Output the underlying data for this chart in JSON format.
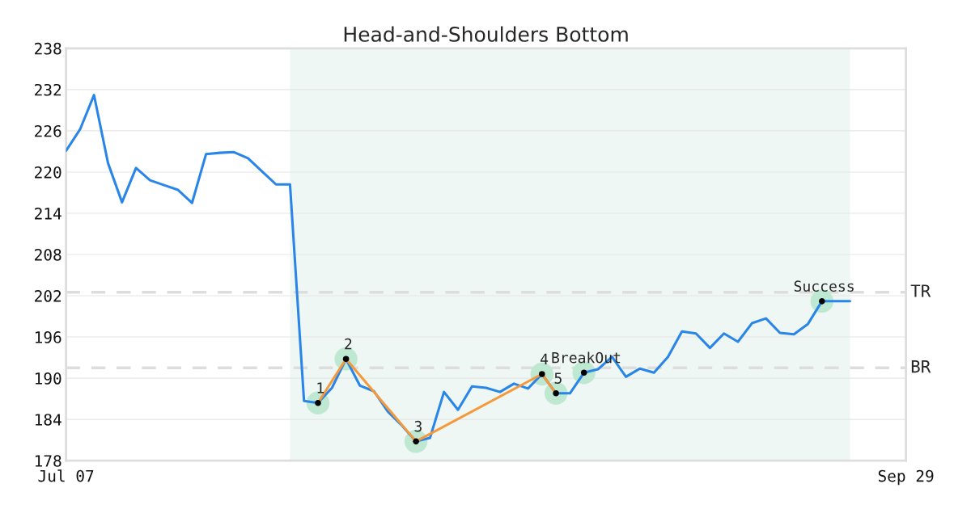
{
  "chart_data": {
    "type": "line",
    "title": "Head-and-Shoulders Bottom",
    "categories": [
      "Jul 07",
      null,
      null,
      null,
      null,
      null,
      null,
      null,
      null,
      null,
      null,
      null,
      null,
      null,
      null,
      null,
      null,
      null,
      null,
      null,
      null,
      null,
      null,
      null,
      null,
      null,
      null,
      null,
      null,
      null,
      null,
      null,
      null,
      null,
      null,
      null,
      null,
      null,
      null,
      null,
      null,
      null,
      null,
      null,
      null,
      null,
      null,
      null,
      null,
      null,
      null,
      null,
      null,
      null,
      null,
      null,
      null,
      null,
      null,
      null,
      "Sep 29"
    ],
    "series": [
      {
        "color": "#2a85e8",
        "values": [
          223.1,
          226.2,
          231.2,
          221.3,
          215.6,
          220.6,
          218.8,
          218.1,
          217.4,
          215.5,
          222.6,
          222.8,
          222.9,
          222.0,
          220.1,
          218.2,
          218.2,
          186.7,
          186.4,
          188.6,
          192.8,
          188.9,
          188.1,
          185.1,
          183.1,
          180.8,
          181.3,
          188.0,
          185.4,
          188.8,
          188.6,
          188.0,
          189.2,
          188.5,
          190.6,
          187.8,
          187.8,
          190.8,
          191.3,
          193.1,
          190.2,
          191.4,
          190.8,
          193.1,
          196.8,
          196.5,
          194.4,
          196.5,
          195.3,
          198.0,
          198.7,
          196.6,
          196.4,
          197.9,
          201.2,
          201.2,
          201.2,
          null,
          null,
          null,
          null
        ]
      },
      {
        "type": "line",
        "color": "#f59a3c",
        "values": [
          null,
          null,
          null,
          null,
          null,
          null,
          null,
          null,
          null,
          null,
          null,
          null,
          null,
          null,
          null,
          null,
          null,
          null,
          186.4,
          null,
          192.8,
          null,
          null,
          null,
          null,
          180.8,
          null,
          null,
          null,
          null,
          null,
          null,
          null,
          null,
          190.6,
          187.8,
          null,
          null,
          null,
          null,
          null,
          null,
          null,
          null,
          null,
          null,
          null,
          null,
          null,
          null,
          null,
          null,
          null,
          null,
          null,
          null,
          null,
          null,
          null,
          null,
          null
        ]
      },
      {
        "type": "scatter",
        "name": "1",
        "color": "#000000",
        "marker": "circle",
        "values": [
          null,
          null,
          null,
          null,
          null,
          null,
          null,
          null,
          null,
          null,
          null,
          null,
          null,
          null,
          null,
          null,
          null,
          null,
          186.4,
          null,
          null,
          null,
          null,
          null,
          null,
          null,
          null,
          null,
          null,
          null,
          null,
          null,
          null,
          null,
          null,
          null,
          null,
          null,
          null,
          null,
          null,
          null,
          null,
          null,
          null,
          null,
          null,
          null,
          null,
          null,
          null,
          null,
          null,
          null,
          null,
          null,
          null,
          null,
          null,
          null,
          null
        ]
      },
      {
        "type": "scatter",
        "name": "2",
        "color": "#000000",
        "marker": "circle",
        "values": [
          null,
          null,
          null,
          null,
          null,
          null,
          null,
          null,
          null,
          null,
          null,
          null,
          null,
          null,
          null,
          null,
          null,
          null,
          null,
          null,
          192.8,
          null,
          null,
          null,
          null,
          null,
          null,
          null,
          null,
          null,
          null,
          null,
          null,
          null,
          null,
          null,
          null,
          null,
          null,
          null,
          null,
          null,
          null,
          null,
          null,
          null,
          null,
          null,
          null,
          null,
          null,
          null,
          null,
          null,
          null,
          null,
          null,
          null,
          null,
          null,
          null
        ]
      },
      {
        "type": "scatter",
        "name": "3",
        "color": "#000000",
        "marker": "circle",
        "values": [
          null,
          null,
          null,
          null,
          null,
          null,
          null,
          null,
          null,
          null,
          null,
          null,
          null,
          null,
          null,
          null,
          null,
          null,
          null,
          null,
          null,
          null,
          null,
          null,
          null,
          180.8,
          null,
          null,
          null,
          null,
          null,
          null,
          null,
          null,
          null,
          null,
          null,
          null,
          null,
          null,
          null,
          null,
          null,
          null,
          null,
          null,
          null,
          null,
          null,
          null,
          null,
          null,
          null,
          null,
          null,
          null,
          null,
          null,
          null,
          null,
          null
        ]
      },
      {
        "type": "scatter",
        "name": "4",
        "color": "#000000",
        "marker": "circle",
        "values": [
          null,
          null,
          null,
          null,
          null,
          null,
          null,
          null,
          null,
          null,
          null,
          null,
          null,
          null,
          null,
          null,
          null,
          null,
          null,
          null,
          null,
          null,
          null,
          null,
          null,
          null,
          null,
          null,
          null,
          null,
          null,
          null,
          null,
          null,
          190.6,
          null,
          null,
          null,
          null,
          null,
          null,
          null,
          null,
          null,
          null,
          null,
          null,
          null,
          null,
          null,
          null,
          null,
          null,
          null,
          null,
          null,
          null,
          null,
          null,
          null,
          null
        ]
      },
      {
        "type": "scatter",
        "name": "5",
        "color": "#000000",
        "marker": "circle",
        "values": [
          null,
          null,
          null,
          null,
          null,
          null,
          null,
          null,
          null,
          null,
          null,
          null,
          null,
          null,
          null,
          null,
          null,
          null,
          null,
          null,
          null,
          null,
          null,
          null,
          null,
          null,
          null,
          null,
          null,
          null,
          null,
          null,
          null,
          null,
          null,
          187.8,
          null,
          null,
          null,
          null,
          null,
          null,
          null,
          null,
          null,
          null,
          null,
          null,
          null,
          null,
          null,
          null,
          null,
          null,
          null,
          null,
          null,
          null,
          null,
          null,
          null
        ]
      },
      {
        "type": "scatter",
        "name": "BreakOut",
        "color": "#000000",
        "marker": "circle",
        "values": [
          null,
          null,
          null,
          null,
          null,
          null,
          null,
          null,
          null,
          null,
          null,
          null,
          null,
          null,
          null,
          null,
          null,
          null,
          null,
          null,
          null,
          null,
          null,
          null,
          null,
          null,
          null,
          null,
          null,
          null,
          null,
          null,
          null,
          null,
          null,
          null,
          null,
          190.8,
          null,
          null,
          null,
          null,
          null,
          null,
          null,
          null,
          null,
          null,
          null,
          null,
          null,
          null,
          null,
          null,
          null,
          null,
          null,
          null,
          null,
          null,
          null
        ]
      },
      {
        "type": "scatter",
        "name": "Success",
        "color": "#000000",
        "marker": "circle",
        "values": [
          null,
          null,
          null,
          null,
          null,
          null,
          null,
          null,
          null,
          null,
          null,
          null,
          null,
          null,
          null,
          null,
          null,
          null,
          null,
          null,
          null,
          null,
          null,
          null,
          null,
          null,
          null,
          null,
          null,
          null,
          null,
          null,
          null,
          null,
          null,
          null,
          null,
          null,
          null,
          null,
          null,
          null,
          null,
          null,
          null,
          null,
          null,
          null,
          null,
          null,
          null,
          null,
          null,
          null,
          201.2,
          null,
          null,
          null,
          null,
          null,
          null
        ]
      }
    ],
    "ylim": [
      178,
      238
    ],
    "yticks": [
      178,
      184,
      190,
      196,
      202,
      208,
      214,
      220,
      226,
      232,
      238
    ],
    "grid": "y",
    "ref_lines": [
      {
        "axis": "y",
        "value": 202.5,
        "label": "TR",
        "color": "#dddddd",
        "line_style": "dashed"
      },
      {
        "axis": "y",
        "value": 191.5,
        "label": "BR",
        "color": "#dddddd",
        "line_style": "dashed"
      }
    ]
  }
}
